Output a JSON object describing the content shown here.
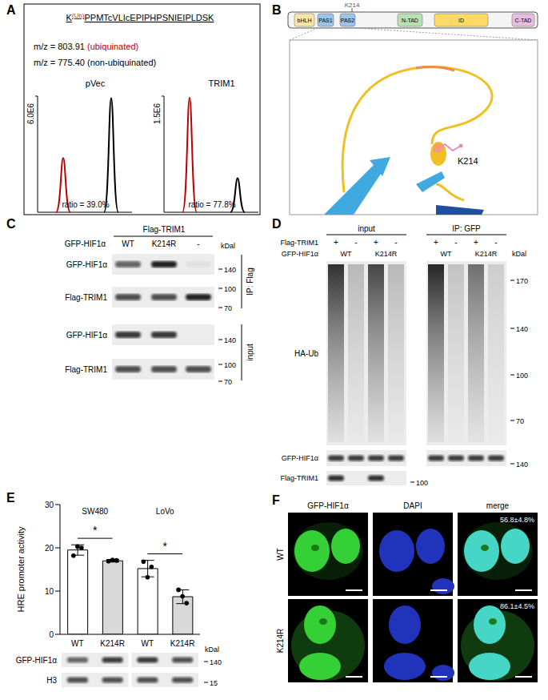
{
  "figure": {
    "A": {
      "label": "A",
      "peptide": {
        "residue": "K",
        "modification": "(Ub)",
        "rest": "PPMTcVLIcEPIPHPSNIEIPLDSK",
        "modification_color": "#d62728"
      },
      "mz": [
        {
          "text": "m/z = 803.91",
          "state": "(ubiquinated)",
          "color": "#c00000"
        },
        {
          "text": "m/z = 775.40",
          "state": "(non-ubiquinated)",
          "color": "#000000"
        }
      ],
      "traces": [
        {
          "name": "pVec",
          "ymax": 6000000,
          "ymax_label": "6.0E6",
          "ubiquinated_height": 2800000,
          "non_ubiquinated_height": 5900000,
          "ratio_text": "ratio = 39.0%"
        },
        {
          "name": "TRIM1",
          "ymax": 1500000,
          "ymax_label": "1.5E6",
          "ubiquinated_height": 1480000,
          "non_ubiquinated_height": 440000,
          "ratio_text": "ratio = 77.8%"
        }
      ]
    },
    "B": {
      "label": "B",
      "site": "K214",
      "domains": [
        {
          "name": "bHLH",
          "color": "#fbe5a6"
        },
        {
          "name": "PAS1",
          "color": "#9dc3e6"
        },
        {
          "name": "PAS2",
          "color": "#9dc3e6"
        },
        {
          "name": "N-TAD",
          "color": "#b7e1b0"
        },
        {
          "name": "ID",
          "color": "#ffd966"
        },
        {
          "name": "C-TAD",
          "color": "#e8bde0"
        }
      ],
      "structure_label": "K214"
    },
    "C": {
      "label": "C",
      "header": "Flag-TRIM1",
      "lane_title": "GFP-HIF1α",
      "lanes": [
        "WT",
        "K214R",
        "-"
      ],
      "rows": [
        "GFP-HIF1α",
        "Flag-TRIM1",
        "GFP-HIF1α",
        "Flag-TRIM1"
      ],
      "groups": [
        "IP: Flag",
        "input"
      ],
      "unit": "kDal",
      "markers": [
        140,
        100,
        70,
        140,
        100,
        70
      ]
    },
    "D": {
      "label": "D",
      "headers": [
        "input",
        "IP: GFP"
      ],
      "trim_row": {
        "name": "Flag-TRIM1",
        "signs": [
          "+",
          "-",
          "+",
          "-"
        ]
      },
      "hif_row": {
        "name": "GFP-HIF1α",
        "variants": [
          "WT",
          "K214R"
        ]
      },
      "blots": [
        "HA-Ub",
        "GFP-HIF1α",
        "Flag-TRIM1"
      ],
      "unit": "kDal",
      "markers": [
        170,
        140,
        100,
        70
      ],
      "lower_markers": [
        140,
        100
      ]
    },
    "E": {
      "label": "E",
      "blot_rows": [
        "GFP-HIF1α",
        "H3"
      ],
      "unit": "kDal",
      "markers": [
        140,
        15
      ]
    },
    "F": {
      "label": "F",
      "columns": [
        "GFP-HIF1α",
        "DAPI",
        "merge"
      ],
      "rows": [
        {
          "name": "WT",
          "nuclear_text": "56.8±4.8%"
        },
        {
          "name": "K214R",
          "nuclear_text": "86.1±4.5%"
        }
      ]
    }
  },
  "chart_data": {
    "type": "bar",
    "y_label": "HRE promoter activity",
    "categories": [
      "WT",
      "K214R",
      "WT",
      "K214R"
    ],
    "groups": [
      "SW480",
      "SW480",
      "LoVo",
      "LoVo"
    ],
    "values": [
      19.5,
      17.0,
      15.2,
      8.7
    ],
    "errors": [
      1.2,
      0.3,
      1.9,
      1.6
    ],
    "points": [
      [
        18.2,
        20.3,
        20.0
      ],
      [
        16.9,
        17.2,
        17.1
      ],
      [
        16.8,
        13.2,
        15.6
      ],
      [
        10.3,
        8.8,
        7.2
      ]
    ],
    "colors": [
      "#ffffff",
      "#d9d9d9",
      "#ffffff",
      "#d9d9d9"
    ],
    "ylim": [
      0,
      30
    ],
    "yticks": [
      0,
      10,
      20,
      30
    ],
    "significance": [
      {
        "between": [
          0,
          1
        ],
        "label": "*"
      },
      {
        "between": [
          2,
          3
        ],
        "label": "*"
      }
    ]
  }
}
